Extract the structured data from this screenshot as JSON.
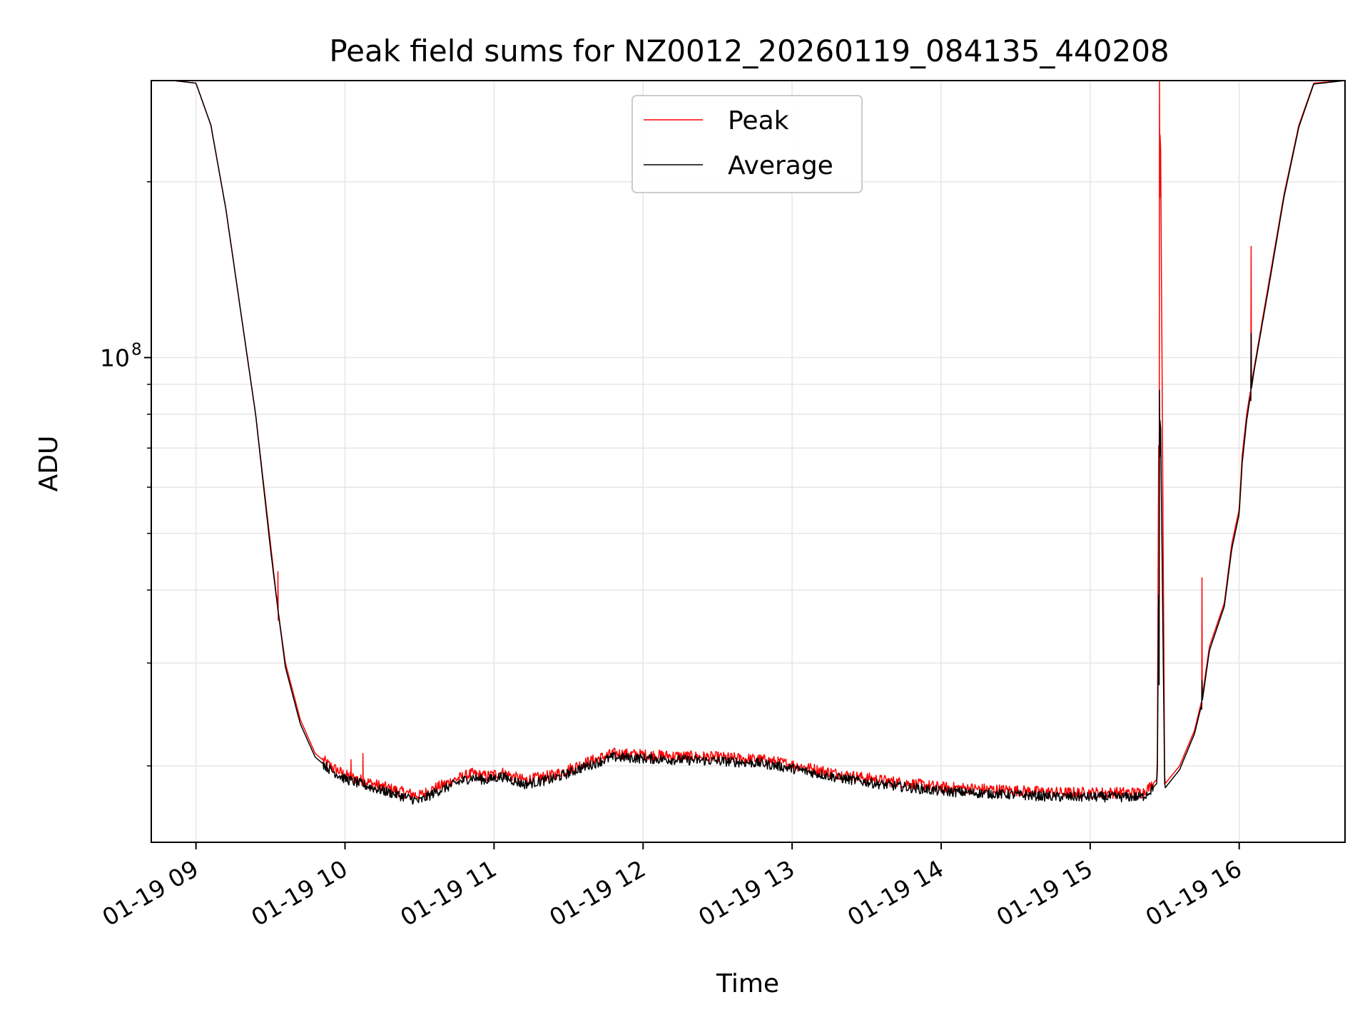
{
  "chart_data": {
    "type": "line",
    "title": "Peak field sums for NZ0012_20260119_084135_440208",
    "xlabel": "Time",
    "ylabel": "ADU",
    "yscale": "log",
    "grid": true,
    "legend_position": "top-center",
    "colors": {
      "Peak": "#ff0000",
      "Average": "#000000",
      "grid": "#e6e6e6"
    },
    "x_domain_hours": [
      8.7,
      16.71
    ],
    "ylim": [
      14800000,
      298000000
    ],
    "major_y_ticks": [
      {
        "value": 100000000,
        "mantissa": "10",
        "exp": "8"
      }
    ],
    "minor_y_ticks": [
      20000000,
      30000000,
      40000000,
      50000000,
      60000000,
      70000000,
      80000000,
      90000000,
      200000000
    ],
    "x_ticks": [
      {
        "value": 9,
        "label": "01-19 09"
      },
      {
        "value": 10,
        "label": "01-19 10"
      },
      {
        "value": 11,
        "label": "01-19 11"
      },
      {
        "value": 12,
        "label": "01-19 12"
      },
      {
        "value": 13,
        "label": "01-19 13"
      },
      {
        "value": 14,
        "label": "01-19 14"
      },
      {
        "value": 15,
        "label": "01-19 15"
      },
      {
        "value": 16,
        "label": "01-19 16"
      }
    ],
    "series": [
      {
        "name": "Peak",
        "x": [
          8.7,
          8.85,
          9.0,
          9.1,
          9.2,
          9.3,
          9.4,
          9.5,
          9.55,
          9.6,
          9.7,
          9.8,
          9.9,
          10.0,
          10.2,
          10.4,
          10.5,
          10.6,
          10.75,
          10.85,
          10.95,
          11.05,
          11.2,
          11.4,
          11.6,
          11.8,
          12.0,
          12.2,
          12.5,
          12.8,
          13.0,
          13.3,
          13.6,
          14.0,
          14.4,
          14.8,
          15.1,
          15.35,
          15.4,
          15.45,
          15.47,
          15.5,
          15.6,
          15.7,
          15.75,
          15.8,
          15.9,
          15.95,
          16.0,
          16.02,
          16.05,
          16.1,
          16.2,
          16.3,
          16.4,
          16.5,
          16.71
        ],
        "y": [
          298000000,
          298000000,
          295000000,
          250000000,
          180000000,
          120000000,
          80000000,
          48000000,
          37000000,
          30000000,
          24000000,
          21000000,
          20000000,
          19300000,
          18600000,
          18000000,
          17800000,
          18300000,
          19000000,
          19400000,
          19200000,
          19500000,
          18900000,
          19300000,
          20200000,
          21000000,
          20900000,
          20800000,
          20700000,
          20500000,
          20100000,
          19400000,
          18900000,
          18400000,
          18200000,
          18000000,
          18000000,
          18000000,
          18400000,
          19000000,
          298000000,
          18600000,
          20000000,
          23000000,
          26000000,
          32000000,
          38000000,
          48000000,
          55000000,
          68000000,
          80000000,
          96000000,
          135000000,
          190000000,
          250000000,
          295000000,
          298000000
        ]
      },
      {
        "name": "Average",
        "x": [
          8.7,
          8.85,
          9.0,
          9.1,
          9.2,
          9.3,
          9.4,
          9.5,
          9.55,
          9.6,
          9.7,
          9.8,
          9.9,
          10.0,
          10.2,
          10.4,
          10.5,
          10.6,
          10.75,
          10.85,
          10.95,
          11.05,
          11.2,
          11.4,
          11.6,
          11.8,
          12.0,
          12.2,
          12.5,
          12.8,
          13.0,
          13.3,
          13.6,
          14.0,
          14.4,
          14.8,
          15.1,
          15.35,
          15.4,
          15.45,
          15.47,
          15.5,
          15.6,
          15.7,
          15.75,
          15.8,
          15.9,
          15.95,
          16.0,
          16.02,
          16.05,
          16.1,
          16.2,
          16.3,
          16.4,
          16.5,
          16.71
        ],
        "y": [
          298000000,
          298000000,
          295000000,
          250000000,
          180000000,
          120000000,
          80000000,
          47000000,
          37000000,
          29500000,
          23600000,
          20700000,
          19700000,
          19000000,
          18300000,
          17700000,
          17400000,
          18000000,
          18700000,
          19100000,
          18900000,
          19200000,
          18600000,
          19000000,
          19900000,
          20700000,
          20600000,
          20500000,
          20400000,
          20200000,
          19800000,
          19100000,
          18600000,
          18100000,
          17900000,
          17700000,
          17700000,
          17700000,
          18100000,
          18700000,
          88000000,
          18300000,
          19700000,
          22700000,
          25600000,
          31500000,
          37500000,
          47000000,
          54000000,
          66000000,
          78000000,
          95000000,
          133000000,
          188000000,
          248000000,
          294000000,
          298000000
        ]
      }
    ]
  }
}
